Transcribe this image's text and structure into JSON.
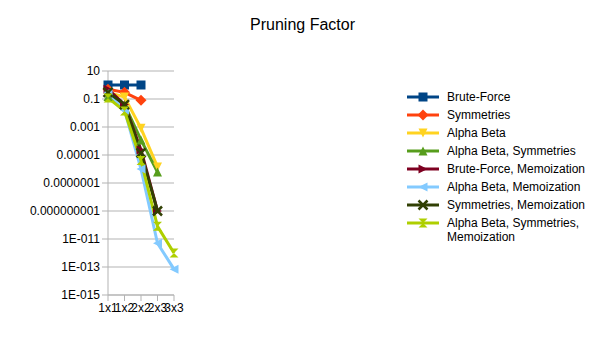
{
  "chart_data": {
    "type": "line",
    "title": "Pruning Factor",
    "categories": [
      "1x1",
      "1x2",
      "2x2",
      "2x3",
      "3x3"
    ],
    "log": "y",
    "grid": true,
    "legend": "right",
    "ylim": [
      1e-15,
      10
    ],
    "yticks": [
      10,
      0.1,
      0.001,
      1e-05,
      1e-07,
      1e-09,
      {
        "value": 1e-11,
        "label": "1E-011"
      },
      {
        "value": 1e-13,
        "label": "1E-013"
      },
      {
        "value": 1e-15,
        "label": "1E-015"
      }
    ],
    "series": [
      {
        "name": "Brute-Force",
        "color": "#004586",
        "marker": "square",
        "values": [
          1,
          1,
          1,
          null,
          null
        ]
      },
      {
        "name": "Symmetries",
        "color": "#ff420e",
        "marker": "diamond",
        "values": [
          0.5,
          0.3,
          0.08,
          null,
          null
        ]
      },
      {
        "name": "Alpha Beta",
        "color": "#ffd320",
        "marker": "triangle-down",
        "values": [
          0.3,
          0.14,
          0.0008,
          1.4e-06,
          null
        ]
      },
      {
        "name": "Alpha Beta, Symmetries",
        "color": "#579d1c",
        "marker": "triangle",
        "values": [
          0.15,
          0.04,
          0.00012,
          6e-07,
          null
        ]
      },
      {
        "name": "Brute-Force, Memoization",
        "color": "#7e0021",
        "marker": "arrow-right",
        "values": [
          0.5,
          0.04,
          2.3e-05,
          1e-09,
          null
        ]
      },
      {
        "name": "Alpha Beta, Memoization",
        "color": "#83caff",
        "marker": "arrow-left",
        "values": [
          0.3,
          0.016,
          1e-06,
          5e-12,
          7e-14
        ]
      },
      {
        "name": "Symmetries, Memoization",
        "color": "#314004",
        "marker": "x",
        "values": [
          0.3,
          0.04,
          1.4e-05,
          1e-09,
          null
        ]
      },
      {
        "name": "Alpha Beta, Symmetries, Memoization",
        "color": "#aecf00",
        "marker": "hourglass",
        "values": [
          0.12,
          0.014,
          4e-06,
          8e-11,
          1e-12
        ]
      }
    ]
  }
}
